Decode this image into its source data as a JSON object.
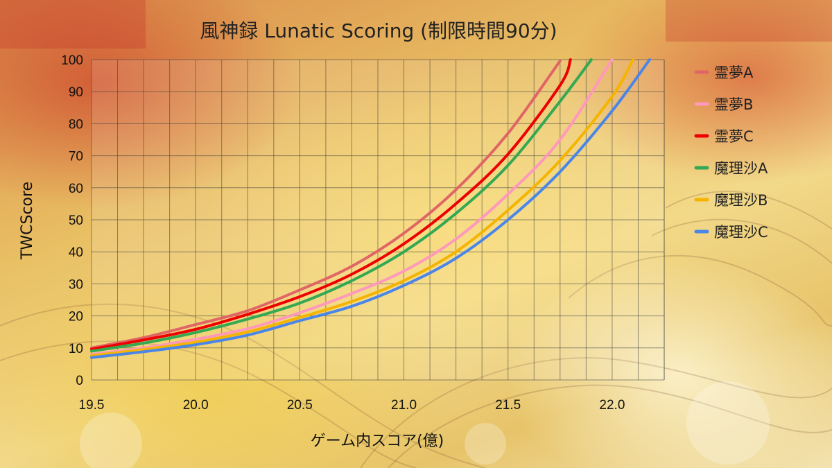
{
  "chart_data": {
    "type": "line",
    "title": "風神録 Lunatic Scoring (制限時間90分)",
    "xlabel": "ゲーム内スコア(億)",
    "ylabel": "TWCScore",
    "xlim": [
      19.5,
      22.25
    ],
    "ylim": [
      0,
      100
    ],
    "xticks": [
      19.5,
      20.0,
      20.5,
      21.0,
      21.5,
      22.0
    ],
    "xtick_labels": [
      "19.5",
      "20.0",
      "20.5",
      "21.0",
      "21.5",
      "22.0"
    ],
    "yticks": [
      0,
      10,
      20,
      30,
      40,
      50,
      60,
      70,
      80,
      90,
      100
    ],
    "grid": true,
    "legend_position": "right",
    "series": [
      {
        "name": "霊夢A",
        "color": "#e06666",
        "x": [
          19.5,
          19.75,
          20.0,
          20.25,
          20.5,
          20.75,
          21.0,
          21.25,
          21.5,
          21.75
        ],
        "y": [
          10.0,
          13.2,
          17.3,
          21.6,
          28.1,
          35.5,
          45.8,
          59.4,
          77.0,
          99.6
        ]
      },
      {
        "name": "霊夢B",
        "color": "#ff99bb",
        "x": [
          19.5,
          19.75,
          20.0,
          20.25,
          20.5,
          20.75,
          21.0,
          21.25,
          21.5,
          21.75,
          22.0
        ],
        "y": [
          8.0,
          10.0,
          12.7,
          16.0,
          21.0,
          27.0,
          34.0,
          44.0,
          58.0,
          75.0,
          100.0
        ]
      },
      {
        "name": "霊夢C",
        "color": "#ee0000",
        "x": [
          19.5,
          19.75,
          20.0,
          20.25,
          20.5,
          20.75,
          21.0,
          21.25,
          21.5,
          21.75,
          21.8
        ],
        "y": [
          9.6,
          12.5,
          15.8,
          20.5,
          26.0,
          33.0,
          42.5,
          55.0,
          70.5,
          92.0,
          100.0
        ]
      },
      {
        "name": "魔理沙A",
        "color": "#34a853",
        "x": [
          19.5,
          19.75,
          20.0,
          20.25,
          20.5,
          20.75,
          21.0,
          21.25,
          21.5,
          21.75,
          21.9
        ],
        "y": [
          9.0,
          11.5,
          14.8,
          19.0,
          24.0,
          31.0,
          40.0,
          52.0,
          67.0,
          87.0,
          100.0
        ]
      },
      {
        "name": "魔理沙B",
        "color": "#f4b400",
        "x": [
          19.5,
          19.75,
          20.0,
          20.25,
          20.5,
          20.75,
          21.0,
          21.25,
          21.5,
          21.75,
          22.0,
          22.1
        ],
        "y": [
          7.6,
          9.5,
          11.8,
          15.0,
          19.5,
          24.5,
          31.0,
          40.0,
          53.0,
          68.5,
          88.5,
          100.0
        ]
      },
      {
        "name": "魔理沙C",
        "color": "#4a86e8",
        "x": [
          19.5,
          19.75,
          20.0,
          20.25,
          20.5,
          20.75,
          21.0,
          21.25,
          21.5,
          21.75,
          22.0,
          22.18
        ],
        "y": [
          7.0,
          8.8,
          11.0,
          14.0,
          18.5,
          23.0,
          29.5,
          38.0,
          50.0,
          65.0,
          84.0,
          100.0
        ]
      }
    ]
  }
}
